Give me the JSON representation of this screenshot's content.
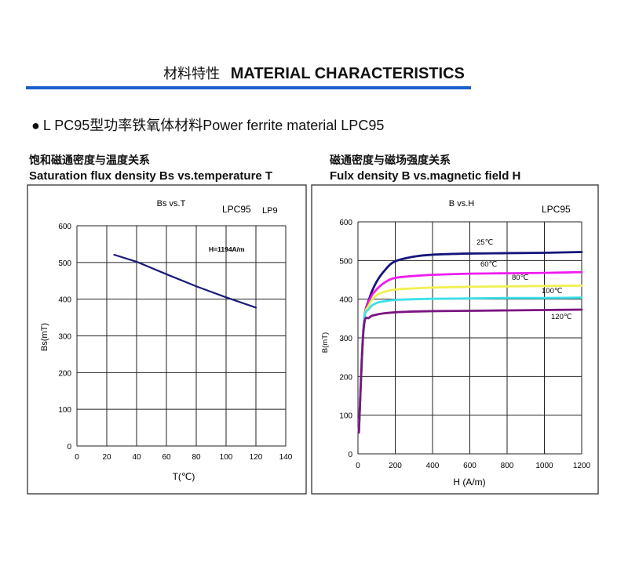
{
  "header": {
    "title_zh": "材料特性",
    "title_en": "MATERIAL CHARACTERISTICS",
    "rule_color": "#1a5fd0"
  },
  "section": {
    "bullet": "●",
    "heading": "L PC95型功率铁氧体材料Power ferrite material LPC95"
  },
  "chart_data": [
    {
      "type": "line",
      "caption_zh": "饱和磁通密度与温度关系",
      "caption_en": "Saturation flux density Bs vs.temperature T",
      "title": "Bs vs.T",
      "label": "LPC95",
      "label2": "LP9",
      "annotation": "H=1194A/m",
      "xlabel": "T(℃)",
      "ylabel": "Bs(mT)",
      "xlim": [
        0,
        140
      ],
      "ylim": [
        0,
        600
      ],
      "xticks": [
        "0",
        "20",
        "40",
        "60",
        "80",
        "100",
        "120",
        "140"
      ],
      "yticks": [
        "0",
        "100",
        "200",
        "300",
        "400",
        "500",
        "600"
      ],
      "grid": true,
      "series": [
        {
          "name": "Bs",
          "color": "#1a1a7a",
          "x": [
            25,
            40,
            60,
            80,
            100,
            120
          ],
          "y": [
            521,
            502,
            468,
            435,
            405,
            377
          ]
        }
      ]
    },
    {
      "type": "line",
      "caption_zh": "磁通密度与磁场强度关系",
      "caption_en": "Fulx density B vs.magnetic field H",
      "title": "B vs.H",
      "label": "LPC95",
      "xlabel": "H (A/m)",
      "ylabel": "B(mT)",
      "xlim": [
        0,
        1200
      ],
      "ylim": [
        0,
        600
      ],
      "xticks": [
        "0",
        "200",
        "400",
        "600",
        "800",
        "1000",
        "1200"
      ],
      "yticks": [
        "0",
        "100",
        "200",
        "300",
        "400",
        "500",
        "600"
      ],
      "grid": true,
      "series": [
        {
          "name": "25℃",
          "color": "#15157a",
          "x": [
            5,
            30,
            60,
            100,
            150,
            200,
            300,
            400,
            600,
            800,
            1000,
            1200
          ],
          "y": [
            60,
            330,
            400,
            445,
            478,
            498,
            510,
            515,
            518,
            519,
            520,
            522
          ]
        },
        {
          "name": "60℃",
          "color": "#ee1cee",
          "x": [
            5,
            30,
            60,
            100,
            150,
            200,
            300,
            400,
            600,
            800,
            1000,
            1200
          ],
          "y": [
            60,
            330,
            395,
            425,
            445,
            455,
            460,
            463,
            466,
            467,
            468,
            470
          ]
        },
        {
          "name": "80℃",
          "color": "#f0f050",
          "x": [
            5,
            30,
            60,
            100,
            150,
            200,
            300,
            400,
            600,
            800,
            1000,
            1200
          ],
          "y": [
            60,
            330,
            385,
            410,
            420,
            425,
            428,
            430,
            432,
            433,
            434,
            435
          ]
        },
        {
          "name": "100℃",
          "color": "#3de0e8",
          "x": [
            5,
            30,
            60,
            100,
            150,
            200,
            300,
            400,
            600,
            800,
            1000,
            1200
          ],
          "y": [
            60,
            330,
            375,
            390,
            395,
            398,
            400,
            401,
            402,
            403,
            403,
            404
          ]
        },
        {
          "name": "120℃",
          "color": "#7a1580",
          "x": [
            5,
            30,
            60,
            100,
            150,
            200,
            300,
            400,
            600,
            800,
            1000,
            1200
          ],
          "y": [
            55,
            320,
            352,
            360,
            364,
            366,
            368,
            369,
            370,
            371,
            372,
            373
          ]
        }
      ]
    }
  ]
}
